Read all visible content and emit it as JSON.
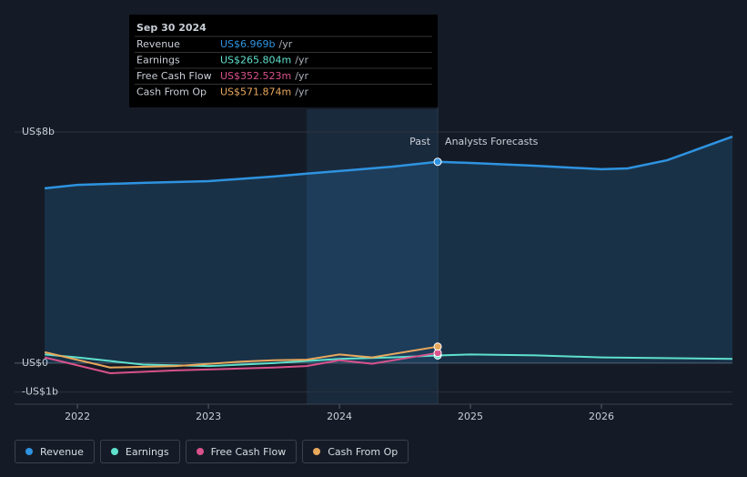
{
  "chart_data": {
    "type": "line",
    "xlim": [
      2021.52,
      2027
    ],
    "xticks": [
      2022,
      2023,
      2024,
      2025,
      2026
    ],
    "ylim": [
      -1.42,
      8
    ],
    "yticks": [
      {
        "value": -1,
        "label": "-US$1b"
      },
      {
        "value": 0,
        "label": "US$0"
      },
      {
        "value": 8,
        "label": "US$8b"
      }
    ],
    "past_label": "Past",
    "forecast_label": "Analysts Forecasts",
    "series": [
      {
        "name": "Revenue",
        "color": "#2e93e0",
        "x": [
          2021.75,
          2022,
          2022.5,
          2023,
          2023.5,
          2023.75,
          2024,
          2024.4,
          2024.75,
          2025,
          2025.5,
          2026,
          2026.2,
          2026.5,
          2027
        ],
        "values": [
          6.05,
          6.17,
          6.24,
          6.3,
          6.46,
          6.56,
          6.65,
          6.8,
          6.969,
          6.93,
          6.83,
          6.71,
          6.74,
          7.02,
          7.84
        ]
      },
      {
        "name": "Earnings",
        "color": "#5ee0cd",
        "x": [
          2021.75,
          2022,
          2022.5,
          2023,
          2023.5,
          2024,
          2024.4,
          2024.75,
          2025,
          2025.5,
          2026,
          2027
        ],
        "values": [
          0.3,
          0.2,
          -0.05,
          -0.1,
          0.0,
          0.15,
          0.2,
          0.266,
          0.3,
          0.27,
          0.2,
          0.15
        ]
      },
      {
        "name": "Free Cash Flow",
        "color": "#d9528b",
        "x": [
          2021.75,
          2022.25,
          2022.75,
          2023.5,
          2023.75,
          2024,
          2024.25,
          2024.75
        ],
        "values": [
          0.2,
          -0.35,
          -0.25,
          -0.15,
          -0.1,
          0.1,
          -0.02,
          0.353
        ]
      },
      {
        "name": "Cash From Op",
        "color": "#e8a85c",
        "x": [
          2021.75,
          2022.25,
          2022.75,
          2023.25,
          2023.5,
          2023.75,
          2024,
          2024.25,
          2024.75
        ],
        "values": [
          0.38,
          -0.15,
          -0.1,
          0.05,
          0.1,
          0.12,
          0.3,
          0.2,
          0.572
        ]
      }
    ],
    "tooltip": {
      "date": "Sep 30 2024",
      "rows": [
        {
          "label": "Revenue",
          "value": "US$6.969b",
          "unit": "/yr"
        },
        {
          "label": "Earnings",
          "value": "US$265.804m",
          "unit": "/yr"
        },
        {
          "label": "Free Cash Flow",
          "value": "US$352.523m",
          "unit": "/yr"
        },
        {
          "label": "Cash From Op",
          "value": "US$571.874m",
          "unit": "/yr"
        }
      ]
    }
  }
}
